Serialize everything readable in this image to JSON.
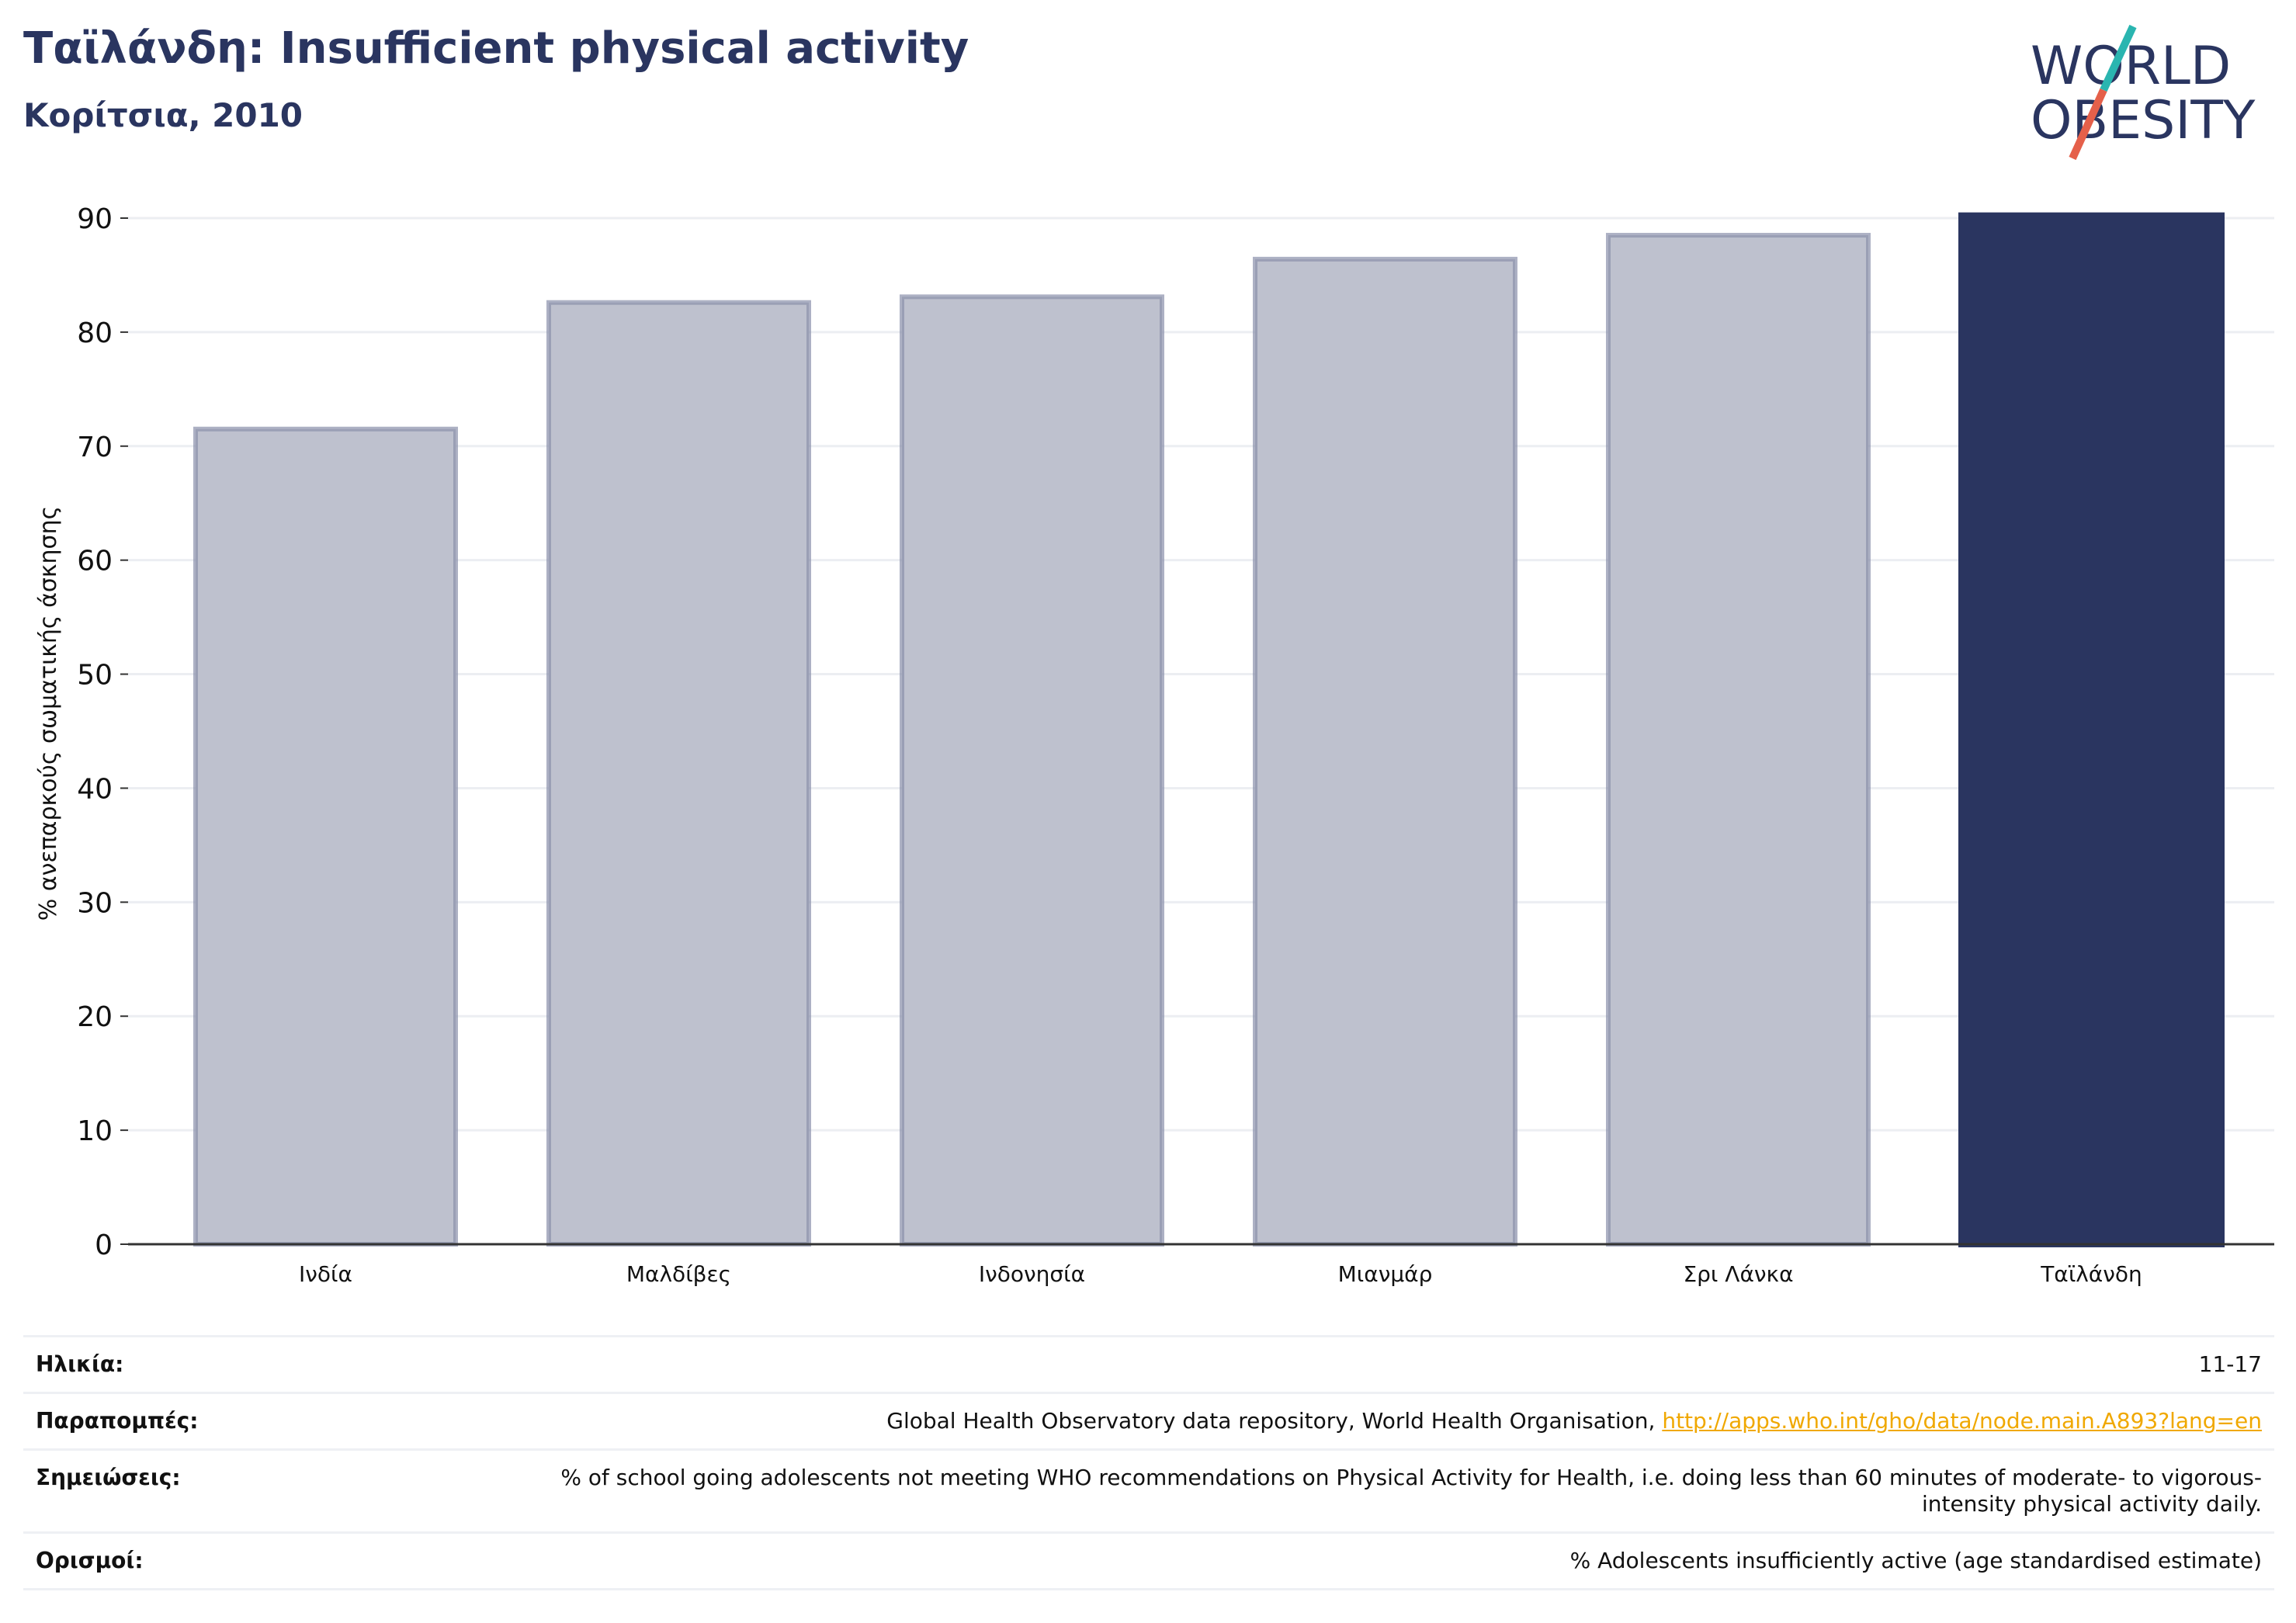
{
  "header": {
    "title": "Ταϊλάνδη: Insufficient physical activity",
    "subtitle": "Κορίτσια, 2010"
  },
  "logo": {
    "line1": "WORLD",
    "line2": "OBESITY",
    "accent_teal": "#2ab5b0",
    "accent_red": "#e5604a"
  },
  "colors": {
    "highlight": "#2a3560",
    "other": "#bec1ce",
    "other_stroke": "#8a90ab",
    "grid": "#eceef2"
  },
  "chart_data": {
    "type": "bar",
    "categories": [
      "Ινδία",
      "Μαλδίβες",
      "Ινδονησία",
      "Μιανμάρ",
      "Σρι Λάνκα",
      "Ταϊλάνδη"
    ],
    "values": [
      71.5,
      82.6,
      83.1,
      86.4,
      88.5,
      90.5
    ],
    "highlight_index": 5,
    "ylabel": "% ανεπαρκούς σωματικής άσκησης",
    "xlabel": "",
    "ylim": [
      0,
      90
    ],
    "yticks": [
      0,
      10,
      20,
      30,
      40,
      50,
      60,
      70,
      80,
      90
    ],
    "grid": true
  },
  "footer": {
    "age_label": "Ηλικία:",
    "age_value": "11-17",
    "refs_label": "Παραπομπές:",
    "refs_text": "Global Health Observatory data repository, World Health Organisation, ",
    "refs_link": "http://apps.who.int/gho/data/node.main.A893?lang=en",
    "notes_label": "Σημειώσεις:",
    "notes_value": "% of school going adolescents not meeting WHO recommendations on Physical Activity for Health, i.e. doing less than 60 minutes of moderate- to vigorous-intensity physical activity daily.",
    "defs_label": "Ορισμοί:",
    "defs_value": "% Adolescents insufficiently active (age standardised estimate)"
  }
}
